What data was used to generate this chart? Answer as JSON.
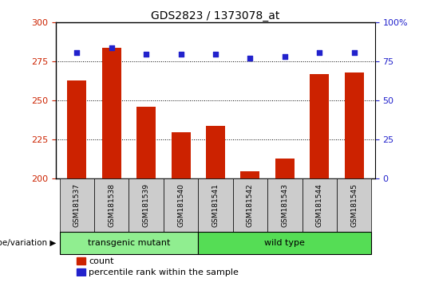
{
  "title": "GDS2823 / 1373078_at",
  "samples": [
    "GSM181537",
    "GSM181538",
    "GSM181539",
    "GSM181540",
    "GSM181541",
    "GSM181542",
    "GSM181543",
    "GSM181544",
    "GSM181545"
  ],
  "counts": [
    263,
    284,
    246,
    230,
    234,
    205,
    213,
    267,
    268
  ],
  "percentiles": [
    81,
    84,
    80,
    80,
    80,
    77,
    78,
    81,
    81
  ],
  "ylim_left": [
    200,
    300
  ],
  "ylim_right": [
    0,
    100
  ],
  "yticks_left": [
    200,
    225,
    250,
    275,
    300
  ],
  "yticks_right": [
    0,
    25,
    50,
    75,
    100
  ],
  "bar_color": "#cc2200",
  "dot_color": "#2222cc",
  "transgenic_count": 4,
  "wild_type_count": 5,
  "transgenic_label": "transgenic mutant",
  "wild_type_label": "wild type",
  "group_label": "genotype/variation",
  "legend_count_label": "count",
  "legend_percentile_label": "percentile rank within the sample",
  "transgenic_bg": "#90ee90",
  "wild_type_bg": "#55dd55",
  "xticklabel_bg": "#cccccc",
  "title_fontsize": 10,
  "tick_fontsize": 8,
  "bar_width": 0.55
}
